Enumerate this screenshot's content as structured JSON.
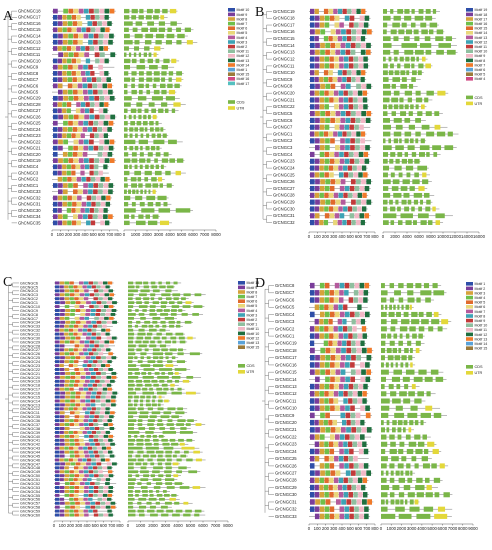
{
  "panels": [
    {
      "label": "A",
      "genes": [
        "GhCNGC18",
        "GhCNGC17",
        "GhCNGC16",
        "GhCNGC15",
        "GhCNGC14",
        "GhCNGC13",
        "GhCNGC12",
        "GhCNGC11",
        "GhCNGC10",
        "GhCNGC9",
        "GhCNGC8",
        "GhCNGC7",
        "GhCNGC6",
        "GhCNGC5",
        "GhCNGC29",
        "GhCNGC28",
        "GhCNGC27",
        "GhCNGC26",
        "GhCNGC25",
        "GhCNGC24",
        "GhCNGC23",
        "GhCNGC22",
        "GhCNGC21",
        "GhCNGC20",
        "GhCNGC19",
        "GhCNGC4",
        "GhCNGC3",
        "GhCNGC2",
        "GhCNGC1",
        "GhCNGC33",
        "GhCNGC32",
        "GhCNGC31",
        "GhCNGC30",
        "GhCNGC34",
        "GhCNGC35"
      ],
      "motif_axis": [
        "0",
        "100",
        "200",
        "300",
        "400",
        "500",
        "600",
        "700",
        "800"
      ],
      "gene_axis": [
        "0",
        "1000",
        "2000",
        "3000",
        "4000",
        "5000",
        "6000",
        "7000",
        "8000"
      ],
      "legend_motifs": [
        "Motif 10",
        "Motif 9",
        "Motif 8",
        "Motif 7",
        "Motif 6",
        "Motif 5",
        "Motif 4",
        "Motif 3",
        "Motif 2",
        "Motif 11",
        "Motif 12",
        "Motif 13",
        "Motif 14",
        "Motif 1",
        "Motif 15",
        "Motif 16",
        "Motif 17"
      ]
    },
    {
      "label": "B",
      "genes": [
        "GrCNGC19",
        "GrCNGC18",
        "GrCNGC17",
        "GrCNGC16",
        "GrCNGC15",
        "GrCNGC14",
        "GrCNGC13",
        "GrCNGC12",
        "GrCNGC11",
        "GrCNGC10",
        "GrCNGC9",
        "GrCNGC8",
        "GrCNGC20",
        "GrCNGC21",
        "GrCNGC22",
        "GrCNGC5",
        "GrCNGC6",
        "GrCNGC7",
        "GrCNGC1",
        "GrCNGC2",
        "GrCNGC3",
        "GrCNGC4",
        "GrCNGC23",
        "GrCNGC24",
        "GrCNGC25",
        "GrCNGC26",
        "GrCNGC27",
        "GrCNGC28",
        "GrCNGC29",
        "GrCNGC30",
        "GrCNGC31",
        "GrCNGC32"
      ],
      "motif_axis": [
        "0",
        "100",
        "200",
        "300",
        "400",
        "500",
        "600",
        "700",
        "800"
      ],
      "gene_axis": [
        "0",
        "2000",
        "4000",
        "6000",
        "8000",
        "10000",
        "12000",
        "14000",
        "16000"
      ],
      "legend_motifs": [
        "Motif 19",
        "Motif 18",
        "Motif 17",
        "Motif 16",
        "Motif 15",
        "Motif 14",
        "Motif 13",
        "Motif 12",
        "Motif 11",
        "Motif 10",
        "Motif 9",
        "Motif 8",
        "Motif 7",
        "Motif 6",
        "Motif 5",
        "Motif 4"
      ]
    },
    {
      "label": "C",
      "genes": [
        "GhCNGC6",
        "GhCNGC5",
        "GhCNGC4",
        "GhCNGC3",
        "GhCNGC2",
        "GhCNGC1",
        "GhCNGC10",
        "GhCNGC9",
        "GhCNGC8",
        "GhCNGC7",
        "GhCNGC34",
        "GhCNGC33",
        "GhCNGC32",
        "GhCNGC31",
        "GhCNGC30",
        "GhCNGC29",
        "GhCNGC28",
        "GhCNGC27",
        "GhCNGC26",
        "GhCNGC25",
        "GhCNGC24",
        "GhCNGC23",
        "GhCNGC22",
        "GhCNGC21",
        "GhCNGC20",
        "GhCNGC19",
        "GhCNGC18",
        "GhCNGC17",
        "GhCNGC16",
        "GhCNGC15",
        "GhCNGC14",
        "GhCNGC13",
        "GhCNGC12",
        "GhCNGC11",
        "GhCNGC35",
        "GhCNGC36",
        "GhCNGC37",
        "GhCNGC38",
        "GhCNGC39",
        "GhCNGC40",
        "GhCNGC41",
        "GhCNGC42",
        "GhCNGC43",
        "GhCNGC44",
        "GhCNGC45",
        "GhCNGC46",
        "GhCNGC47",
        "GhCNGC48",
        "GhCNGC49",
        "GhCNGC50",
        "GhCNGC51",
        "GhCNGC52",
        "GhCNGC53",
        "GhCNGC54",
        "GhCNGC55",
        "GhCNGC56",
        "GhCNGC57",
        "GhCNGC58",
        "GhCNGC59",
        "GhCNGC60"
      ],
      "motif_axis": [
        "0",
        "100",
        "200",
        "300",
        "400",
        "500",
        "600",
        "700",
        "800"
      ],
      "gene_axis": [
        "0",
        "1000",
        "2000",
        "3000",
        "4000",
        "5000",
        "6000",
        "7000",
        "8000"
      ],
      "legend_motifs": [
        "Motif 14",
        "Motif 9",
        "Motif 8",
        "Motif 7",
        "Motif 6",
        "Motif 5",
        "Motif 4",
        "Motif 3",
        "Motif 2",
        "Motif 1",
        "Motif 11",
        "Motif 10",
        "Motif 12",
        "Motif 13",
        "Motif 15"
      ]
    },
    {
      "label": "D",
      "genes": [
        "GrCNGC8",
        "GrCNGC7",
        "GrCNGC6",
        "GrCNGC5",
        "GrCNGC4",
        "GrCNGC3",
        "GrCNGC2",
        "GrCNGC1",
        "GrCNGC19",
        "GrCNGC18",
        "GrCNGC17",
        "GrCNGC16",
        "GrCNGC15",
        "GrCNGC14",
        "GrCNGC13",
        "GrCNGC12",
        "GrCNGC11",
        "GrCNGC10",
        "GrCNGC9",
        "GrCNGC20",
        "GrCNGC21",
        "GrCNGC22",
        "GrCNGC23",
        "GrCNGC24",
        "GrCNGC25",
        "GrCNGC26",
        "GrCNGC27",
        "GrCNGC28",
        "GrCNGC29",
        "GrCNGC30",
        "GrCNGC31",
        "GrCNGC32",
        "GrCNGC33"
      ],
      "motif_axis": [
        "0",
        "100",
        "200",
        "300",
        "400",
        "500",
        "600",
        "700",
        "800"
      ],
      "gene_axis": [
        "0",
        "1000",
        "2000",
        "3000",
        "4000",
        "5000",
        "6000",
        "7000",
        "8000",
        "9000"
      ],
      "legend_motifs": [
        "Motif 1",
        "Motif 2",
        "Motif 3",
        "Motif 4",
        "Motif 5",
        "Motif 6",
        "Motif 7",
        "Motif 8",
        "Motif 9",
        "Motif 10",
        "Motif 11",
        "Motif 12",
        "Motif 13",
        "Motif 14",
        "Motif 15"
      ]
    }
  ],
  "legend_gene_items": [
    "CDS",
    "UTR"
  ],
  "colors": {
    "motifs": [
      "#2e4ea8",
      "#7a3d9a",
      "#d6a23a",
      "#6fbf4a",
      "#e06a2c",
      "#e9d77a",
      "#b45a9c",
      "#3da3b5",
      "#c23a3a",
      "#8fbf9f",
      "#f2b8c6",
      "#1f6f3f",
      "#f07a2a",
      "#5aa2d8",
      "#9b7a3a",
      "#d04a84",
      "#55c0c0",
      "#a0a0e0",
      "#5b8f2a"
    ],
    "cds": "#7ab648",
    "utr": "#e3d83a",
    "line": "#555555",
    "tree": "#777777"
  }
}
